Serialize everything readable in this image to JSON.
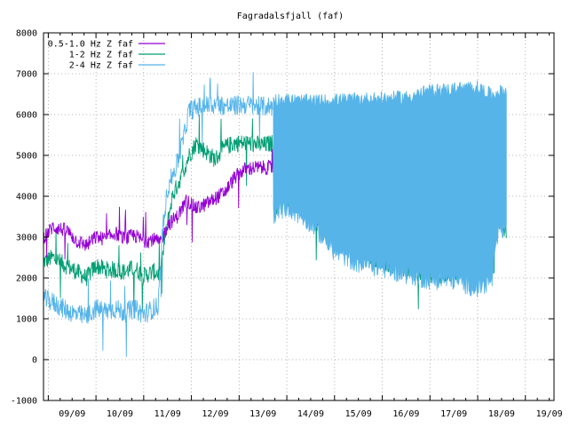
{
  "chart_data": {
    "type": "line",
    "title": "Fagradalsfjall (faf)",
    "xlabel": "",
    "ylabel": "",
    "x_ticks": [
      "09/09",
      "10/09",
      "11/09",
      "12/09",
      "13/09",
      "14/09",
      "15/09",
      "16/09",
      "17/09",
      "18/09",
      "19/09"
    ],
    "x_range_days": [
      8.9,
      19.6
    ],
    "ylim": [
      -1000,
      8000
    ],
    "y_ticks": [
      -1000,
      0,
      1000,
      2000,
      3000,
      4000,
      5000,
      6000,
      7000,
      8000
    ],
    "grid": true,
    "legend_position": "top-left",
    "x_unit": "day of September",
    "series": [
      {
        "name": "0.5-1.0 Hz Z faf",
        "color": "#9400d3",
        "points": [
          [
            8.9,
            3000
          ],
          [
            9.1,
            3250
          ],
          [
            9.4,
            3150
          ],
          [
            9.6,
            2900
          ],
          [
            9.8,
            2800
          ],
          [
            10.0,
            3000
          ],
          [
            10.2,
            2950
          ],
          [
            10.4,
            3100
          ],
          [
            10.6,
            2950
          ],
          [
            10.8,
            3050
          ],
          [
            11.0,
            2900
          ],
          [
            11.2,
            2950
          ],
          [
            11.35,
            2850
          ],
          [
            11.5,
            3300
          ],
          [
            11.7,
            3500
          ],
          [
            11.9,
            3900
          ],
          [
            12.1,
            3700
          ],
          [
            12.3,
            3800
          ],
          [
            12.5,
            3950
          ],
          [
            12.7,
            4100
          ],
          [
            12.9,
            4450
          ],
          [
            13.1,
            4650
          ],
          [
            13.3,
            4700
          ],
          [
            13.5,
            4700
          ],
          [
            13.7,
            4700
          ]
        ],
        "noise": 180
      },
      {
        "name": "1-2 Hz Z faf",
        "color": "#009e73",
        "points": [
          [
            8.9,
            2400
          ],
          [
            9.1,
            2500
          ],
          [
            9.3,
            2350
          ],
          [
            9.6,
            2150
          ],
          [
            9.8,
            2000
          ],
          [
            10.0,
            2300
          ],
          [
            10.2,
            2200
          ],
          [
            10.4,
            2200
          ],
          [
            10.6,
            2150
          ],
          [
            10.8,
            2250
          ],
          [
            11.0,
            2050
          ],
          [
            11.2,
            2150
          ],
          [
            11.35,
            2100
          ],
          [
            11.45,
            3000
          ],
          [
            11.6,
            4000
          ],
          [
            11.8,
            4500
          ],
          [
            11.95,
            5000
          ],
          [
            12.1,
            5300
          ],
          [
            12.3,
            5100
          ],
          [
            12.5,
            4900
          ],
          [
            12.7,
            5200
          ],
          [
            12.9,
            5300
          ],
          [
            13.2,
            5300
          ],
          [
            13.5,
            5250
          ],
          [
            13.7,
            5300
          ],
          [
            13.75,
            3700
          ],
          [
            13.9,
            3950
          ],
          [
            14.1,
            3850
          ],
          [
            15.0,
            3000
          ],
          [
            16.0,
            2400
          ],
          [
            17.0,
            2050
          ],
          [
            17.5,
            2100
          ],
          [
            18.0,
            2300
          ],
          [
            18.2,
            2500
          ],
          [
            18.4,
            3500
          ],
          [
            18.5,
            3300
          ],
          [
            18.6,
            3150
          ]
        ],
        "noise": 220
      },
      {
        "name": "2-4 Hz Z faf",
        "color": "#56b4e9",
        "points": [
          [
            8.9,
            1500
          ],
          [
            9.1,
            1400
          ],
          [
            9.4,
            1200
          ],
          [
            9.6,
            1100
          ],
          [
            9.8,
            1050
          ],
          [
            10.0,
            1250
          ],
          [
            10.2,
            1200
          ],
          [
            10.4,
            1250
          ],
          [
            10.6,
            1150
          ],
          [
            10.8,
            1250
          ],
          [
            11.0,
            1100
          ],
          [
            11.2,
            1250
          ],
          [
            11.3,
            1300
          ],
          [
            11.4,
            3200
          ],
          [
            11.5,
            4200
          ],
          [
            11.7,
            4800
          ],
          [
            11.85,
            5500
          ],
          [
            11.95,
            6100
          ],
          [
            12.2,
            6200
          ],
          [
            12.5,
            6250
          ],
          [
            12.8,
            6200
          ],
          [
            13.1,
            6250
          ],
          [
            13.4,
            6200
          ],
          [
            13.7,
            6200
          ]
        ],
        "noise": 250,
        "band": {
          "x_range": [
            13.72,
            18.6
          ],
          "upper": [
            [
              13.72,
              6300
            ],
            [
              14.5,
              6250
            ],
            [
              15.5,
              6300
            ],
            [
              16.5,
              6350
            ],
            [
              17.0,
              6500
            ],
            [
              17.5,
              6550
            ],
            [
              18.0,
              6600
            ],
            [
              18.3,
              6400
            ],
            [
              18.5,
              6500
            ]
          ],
          "lower": [
            [
              13.72,
              3600
            ],
            [
              14.0,
              3800
            ],
            [
              14.5,
              3400
            ],
            [
              15.0,
              2700
            ],
            [
              15.5,
              2400
            ],
            [
              16.0,
              2300
            ],
            [
              16.5,
              2150
            ],
            [
              17.0,
              2000
            ],
            [
              17.5,
              2000
            ],
            [
              18.0,
              1800
            ],
            [
              18.3,
              2000
            ],
            [
              18.45,
              3300
            ],
            [
              18.6,
              3200
            ]
          ]
        }
      }
    ]
  }
}
